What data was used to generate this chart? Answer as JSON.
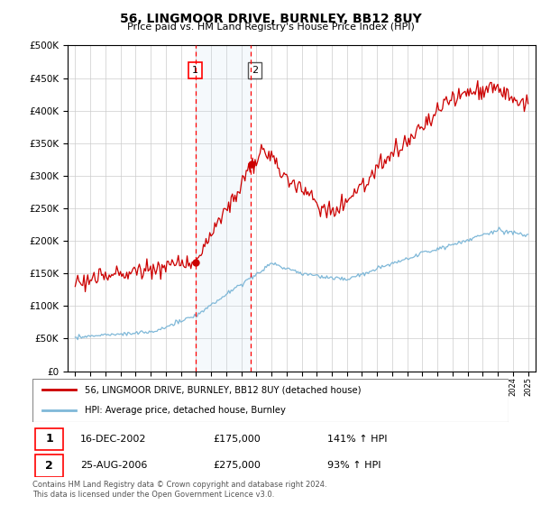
{
  "title": "56, LINGMOOR DRIVE, BURNLEY, BB12 8UY",
  "subtitle": "Price paid vs. HM Land Registry's House Price Index (HPI)",
  "sale1_date": "16-DEC-2002",
  "sale1_price": 175000,
  "sale1_hpi": "141% ↑ HPI",
  "sale2_date": "25-AUG-2006",
  "sale2_price": 275000,
  "sale2_hpi": "93% ↑ HPI",
  "legend_line1": "56, LINGMOOR DRIVE, BURNLEY, BB12 8UY (detached house)",
  "legend_line2": "HPI: Average price, detached house, Burnley",
  "footer": "Contains HM Land Registry data © Crown copyright and database right 2024.\nThis data is licensed under the Open Government Licence v3.0.",
  "hpi_color": "#7fb8d8",
  "price_color": "#cc0000",
  "sale1_x": 2002.96,
  "sale2_x": 2006.65,
  "ylim_max": 500000,
  "ylim_min": 0,
  "yticks": [
    0,
    50000,
    100000,
    150000,
    200000,
    250000,
    300000,
    350000,
    400000,
    450000,
    500000
  ],
  "xmin": 1994.5,
  "xmax": 2025.5
}
